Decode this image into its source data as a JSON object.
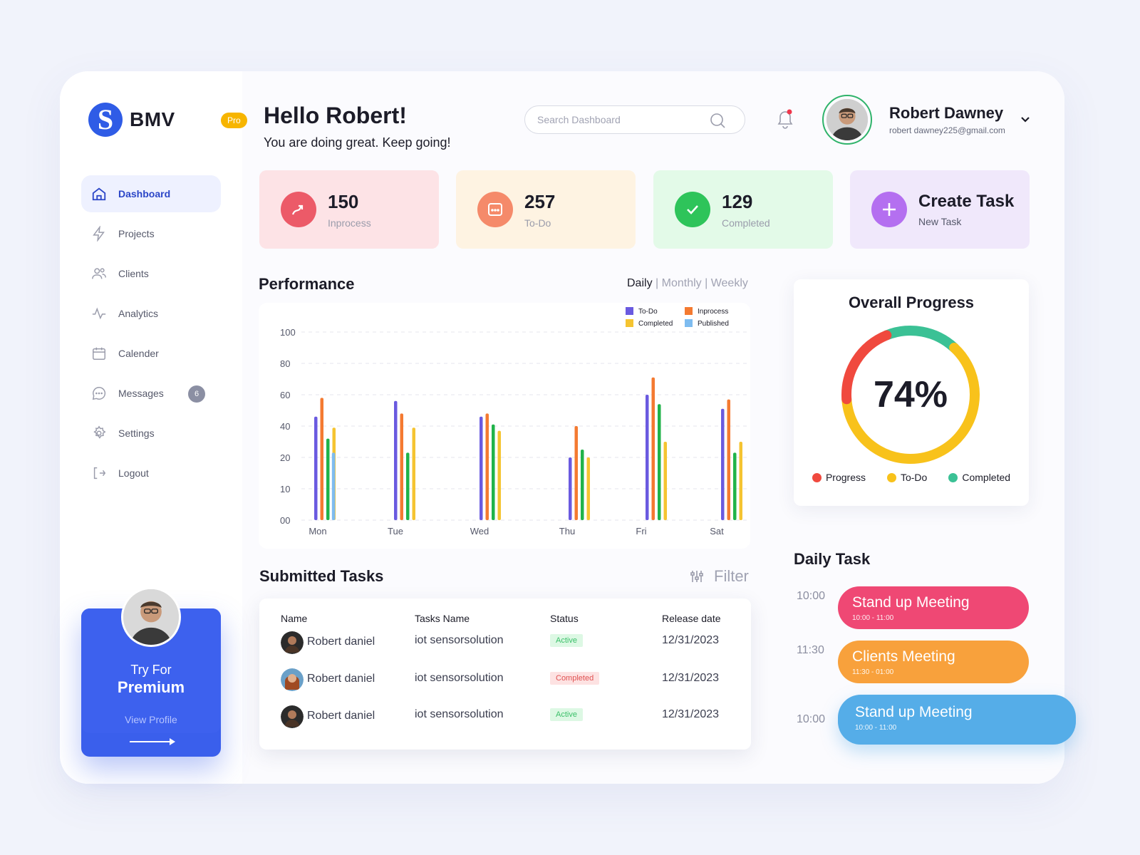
{
  "brand": {
    "name": "BMV",
    "badge": "Pro",
    "logo_letter": "S",
    "accent": "#2f5ce6"
  },
  "nav": [
    {
      "label": "Dashboard",
      "icon": "home-icon",
      "active": true
    },
    {
      "label": "Projects",
      "icon": "lightning-icon"
    },
    {
      "label": "Clients",
      "icon": "users-icon"
    },
    {
      "label": "Analytics",
      "icon": "activity-icon"
    },
    {
      "label": "Calender",
      "icon": "calendar-icon"
    },
    {
      "label": "Messages",
      "icon": "chat-icon",
      "badge": "6"
    },
    {
      "label": "Settings",
      "icon": "gear-icon"
    },
    {
      "label": "Logout",
      "icon": "logout-icon"
    }
  ],
  "premium": {
    "line1": "Try For",
    "line2": "Premium",
    "link": "View Profile"
  },
  "header": {
    "greeting": "Hello Robert!",
    "subtitle": "You are doing great. Keep going!",
    "search_placeholder": "Search Dashboard",
    "user_name": "Robert Dawney",
    "user_email": "robert dawney225@gmail.com"
  },
  "stats": [
    {
      "value": "150",
      "label": "Inprocess",
      "bg": "#fde3e6",
      "icon_bg": "#ec5a68"
    },
    {
      "value": "257",
      "label": "To-Do",
      "bg": "#fef3e2",
      "icon_bg": "#f58a6a"
    },
    {
      "value": "129",
      "label": "Completed",
      "bg": "#e3fae8",
      "icon_bg": "#2ec45a"
    },
    {
      "value": "Create Task",
      "label": "New Task",
      "bg": "#f0e8fb",
      "icon_bg": "#b46ff0"
    }
  ],
  "performance": {
    "title": "Performance",
    "tabs": [
      "Daily",
      "Monthly",
      "Weekly"
    ],
    "active_tab": "Daily"
  },
  "chart_data": {
    "type": "bar",
    "categories": [
      "Mon",
      "Tue",
      "Wed",
      "Thu",
      "Fri",
      "Sat"
    ],
    "y_ticks": [
      "00",
      "10",
      "20",
      "40",
      "60",
      "80",
      "100"
    ],
    "legend_position": "top-right",
    "series": [
      {
        "name": "To-Do",
        "color": "#6a5ae0",
        "values": [
          46,
          56,
          46,
          20,
          60,
          51
        ]
      },
      {
        "name": "Inprocess",
        "color": "#f47a31",
        "values": [
          58,
          48,
          48,
          40,
          71,
          57
        ]
      },
      {
        "name": "Completed",
        "color": "#20b34a",
        "values": [
          32,
          23,
          41,
          25,
          54,
          23
        ]
      },
      {
        "name": "Published",
        "color": "#f5c431",
        "values": [
          39,
          39,
          37,
          20,
          30,
          30
        ]
      }
    ],
    "extra_series_note_legend": [
      {
        "name": "To-Do",
        "color": "#6a5ae0"
      },
      {
        "name": "Inprocess",
        "color": "#f47a31"
      },
      {
        "name": "Completed",
        "color": "#f5c431"
      },
      {
        "name": "Published",
        "color": "#7ebcf0"
      }
    ],
    "published_line": {
      "color": "#7ebcf0",
      "values": [
        23,
        0,
        0,
        0,
        0,
        0
      ]
    },
    "ylim": [
      0,
      100
    ]
  },
  "overall_progress": {
    "title": "Overall Progress",
    "percent": "74%",
    "segments": [
      {
        "name": "Progress",
        "color": "#f0493e",
        "value": 20
      },
      {
        "name": "To-Do",
        "color": "#f8c21b",
        "value": 62
      },
      {
        "name": "Completed",
        "color": "#3bc195",
        "value": 18
      }
    ]
  },
  "submitted": {
    "title": "Submitted Tasks",
    "filter": "Filter",
    "columns": [
      "Name",
      "Tasks Name",
      "Status",
      "Release date"
    ],
    "rows": [
      {
        "name": "Robert daniel",
        "task": "iot sensorsolution",
        "status": "Active",
        "date": "12/31/2023"
      },
      {
        "name": "Robert daniel",
        "task": "iot sensorsolution",
        "status": "Completed",
        "date": "12/31/2023"
      },
      {
        "name": "Robert daniel",
        "task": "iot sensorsolution",
        "status": "Active",
        "date": "12/31/2023"
      }
    ]
  },
  "daily_task": {
    "title": "Daily Task",
    "items": [
      {
        "time": "10:00",
        "title": "Stand up Meeting",
        "range": "10:00 - 11:00",
        "color": "#ef4874"
      },
      {
        "time": "11:30",
        "title": "Clients Meeting",
        "range": "11:30 - 01:00",
        "color": "#f8a13c"
      },
      {
        "time": "10:00",
        "title": "Stand up Meeting",
        "range": "10:00 - 11:00",
        "color": "#55ade8"
      }
    ]
  }
}
